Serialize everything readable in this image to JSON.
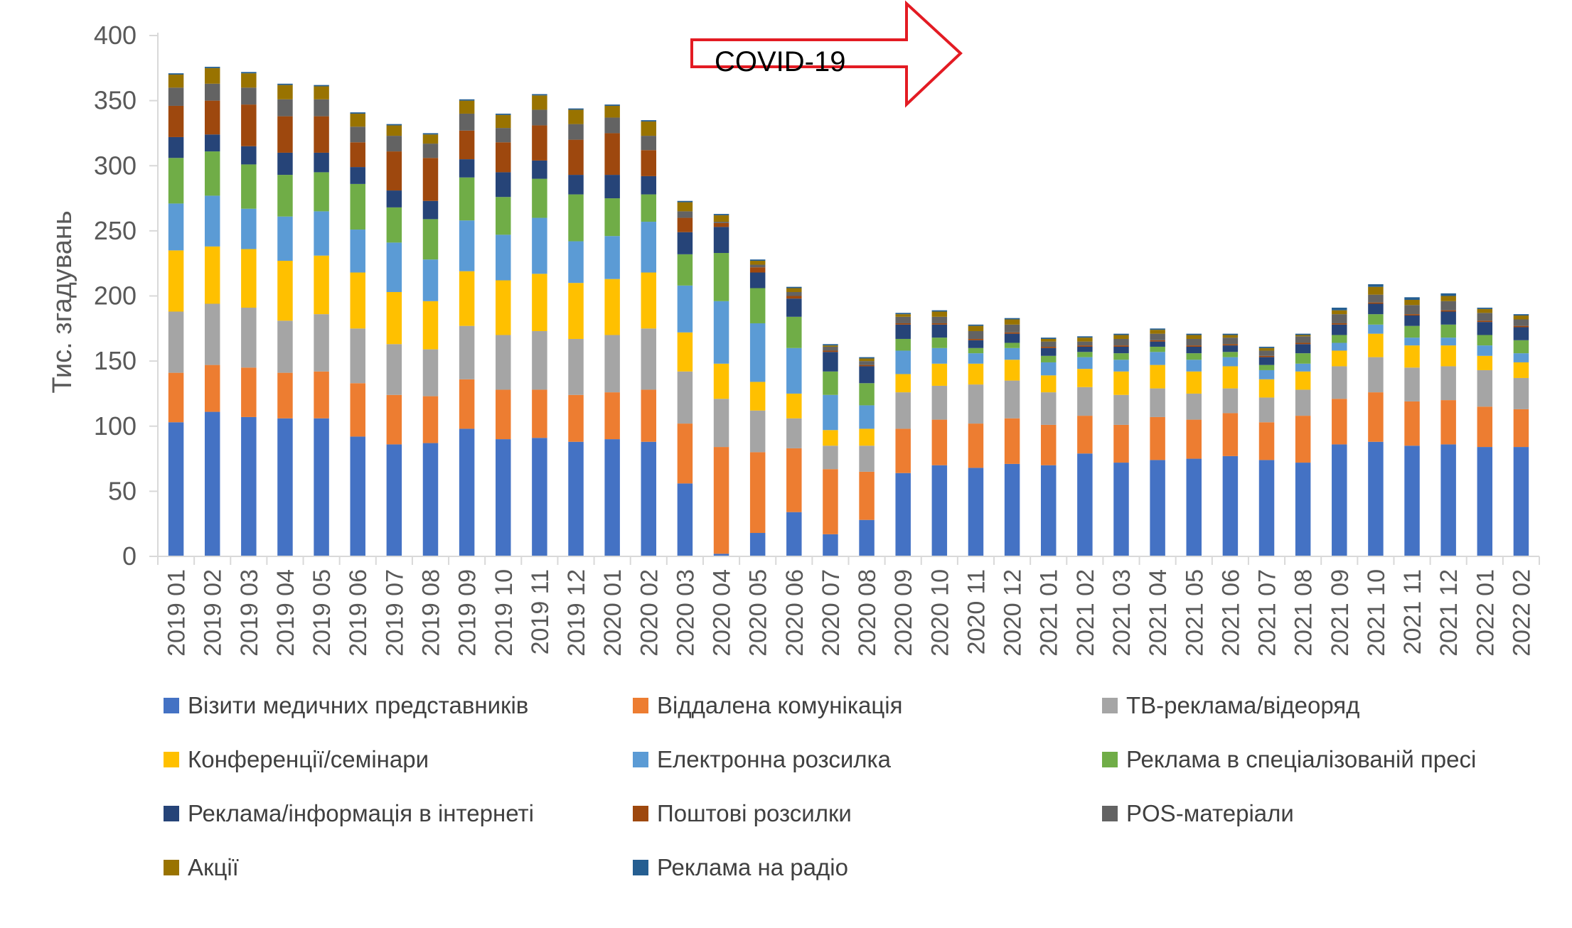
{
  "chart_data": {
    "type": "bar",
    "stacked": true,
    "title": "",
    "xlabel": "",
    "ylabel": "Тис. згадувань",
    "ylim": [
      0,
      400
    ],
    "yticks": [
      0,
      50,
      100,
      150,
      200,
      250,
      300,
      350,
      400
    ],
    "grid": false,
    "legend_position": "bottom",
    "categories": [
      "2019 01",
      "2019 02",
      "2019 03",
      "2019 04",
      "2019 05",
      "2019 06",
      "2019 07",
      "2019 08",
      "2019 09",
      "2019 10",
      "2019 11",
      "2019 12",
      "2020 01",
      "2020 02",
      "2020 03",
      "2020 04",
      "2020 05",
      "2020 06",
      "2020 07",
      "2020 08",
      "2020 09",
      "2020 10",
      "2020 11",
      "2020 12",
      "2021 01",
      "2021 02",
      "2021 03",
      "2021 04",
      "2021 05",
      "2021 06",
      "2021 07",
      "2021 08",
      "2021 09",
      "2021 10",
      "2021 11",
      "2021 12",
      "2022 01",
      "2022 02"
    ],
    "series": [
      {
        "name": "Візити медичних представників",
        "color": "#4472C4",
        "values": [
          103,
          111,
          107,
          106,
          106,
          92,
          86,
          87,
          98,
          90,
          91,
          88,
          90,
          88,
          56,
          2,
          18,
          34,
          17,
          28,
          64,
          70,
          68,
          71,
          70,
          79,
          72,
          74,
          75,
          77,
          74,
          72,
          86,
          88,
          85,
          86,
          84,
          84
        ]
      },
      {
        "name": "Віддалена комунікація",
        "color": "#ED7D31",
        "values": [
          38,
          36,
          38,
          35,
          36,
          41,
          38,
          36,
          38,
          38,
          37,
          36,
          36,
          40,
          46,
          82,
          62,
          49,
          50,
          37,
          34,
          35,
          34,
          35,
          31,
          29,
          29,
          33,
          30,
          33,
          29,
          36,
          35,
          38,
          34,
          34,
          31,
          29
        ]
      },
      {
        "name": "ТВ-реклама/відеоряд",
        "color": "#A5A5A5",
        "values": [
          47,
          47,
          46,
          40,
          44,
          42,
          39,
          36,
          41,
          42,
          45,
          43,
          44,
          47,
          40,
          37,
          32,
          23,
          18,
          20,
          28,
          26,
          30,
          29,
          25,
          22,
          23,
          22,
          20,
          19,
          19,
          20,
          25,
          27,
          26,
          26,
          28,
          24
        ]
      },
      {
        "name": "Конференції/семінари",
        "color": "#FFC000",
        "values": [
          47,
          44,
          45,
          46,
          45,
          43,
          40,
          37,
          42,
          42,
          44,
          43,
          43,
          43,
          30,
          27,
          22,
          19,
          12,
          13,
          14,
          17,
          16,
          16,
          13,
          14,
          18,
          18,
          17,
          17,
          14,
          14,
          12,
          18,
          17,
          16,
          11,
          12
        ]
      },
      {
        "name": "Електронна розсилка",
        "color": "#5B9BD5",
        "values": [
          36,
          39,
          31,
          34,
          34,
          33,
          38,
          32,
          39,
          35,
          43,
          32,
          33,
          39,
          36,
          48,
          45,
          35,
          27,
          18,
          18,
          12,
          8,
          9,
          10,
          9,
          9,
          10,
          9,
          7,
          7,
          6,
          6,
          7,
          6,
          6,
          8,
          7
        ]
      },
      {
        "name": "Реклама в спеціалізованій пресі",
        "color": "#70AD47",
        "values": [
          35,
          34,
          34,
          32,
          30,
          35,
          27,
          31,
          33,
          29,
          30,
          36,
          29,
          21,
          24,
          37,
          27,
          24,
          18,
          17,
          9,
          8,
          4,
          4,
          5,
          4,
          5,
          4,
          5,
          4,
          4,
          8,
          6,
          8,
          9,
          10,
          8,
          10
        ]
      },
      {
        "name": "Реклама/інформація в інтернеті",
        "color": "#264478",
        "values": [
          16,
          13,
          14,
          17,
          15,
          13,
          13,
          14,
          14,
          19,
          14,
          15,
          18,
          14,
          17,
          20,
          12,
          14,
          15,
          13,
          11,
          10,
          6,
          7,
          6,
          4,
          5,
          4,
          5,
          5,
          6,
          7,
          8,
          8,
          8,
          10,
          10,
          10
        ]
      },
      {
        "name": "Поштові розсилки",
        "color": "#9E480E",
        "values": [
          24,
          26,
          32,
          28,
          28,
          19,
          30,
          33,
          22,
          23,
          27,
          27,
          32,
          20,
          11,
          3,
          4,
          2,
          1,
          1,
          1,
          1,
          1,
          1,
          1,
          1,
          1,
          1,
          1,
          1,
          1,
          1,
          1,
          1,
          1,
          1,
          1,
          1
        ]
      },
      {
        "name": "POS-матеріали",
        "color": "#636363",
        "values": [
          14,
          13,
          13,
          13,
          13,
          12,
          12,
          11,
          13,
          11,
          12,
          12,
          12,
          11,
          5,
          1,
          2,
          3,
          3,
          3,
          5,
          5,
          6,
          6,
          4,
          3,
          5,
          5,
          5,
          5,
          4,
          5,
          7,
          6,
          7,
          7,
          6,
          5
        ]
      },
      {
        "name": "Акції",
        "color": "#997300",
        "values": [
          10,
          12,
          11,
          11,
          10,
          10,
          8,
          7,
          10,
          10,
          11,
          11,
          9,
          11,
          7,
          5,
          3,
          3,
          1,
          2,
          2,
          4,
          4,
          4,
          2,
          3,
          3,
          3,
          3,
          2,
          2,
          1,
          3,
          6,
          4,
          4,
          3,
          3
        ]
      },
      {
        "name": "Реклама на радіо",
        "color": "#255E91",
        "values": [
          1,
          1,
          1,
          1,
          1,
          1,
          1,
          1,
          1,
          1,
          1,
          1,
          1,
          1,
          1,
          1,
          1,
          1,
          1,
          1,
          1,
          1,
          1,
          1,
          1,
          1,
          1,
          1,
          1,
          1,
          1,
          1,
          2,
          2,
          2,
          2,
          1,
          1
        ]
      }
    ],
    "annotations": [
      {
        "text": "COVID-19",
        "shape": "red-outline-right-arrow",
        "anchor_category": "2020 03"
      }
    ]
  }
}
